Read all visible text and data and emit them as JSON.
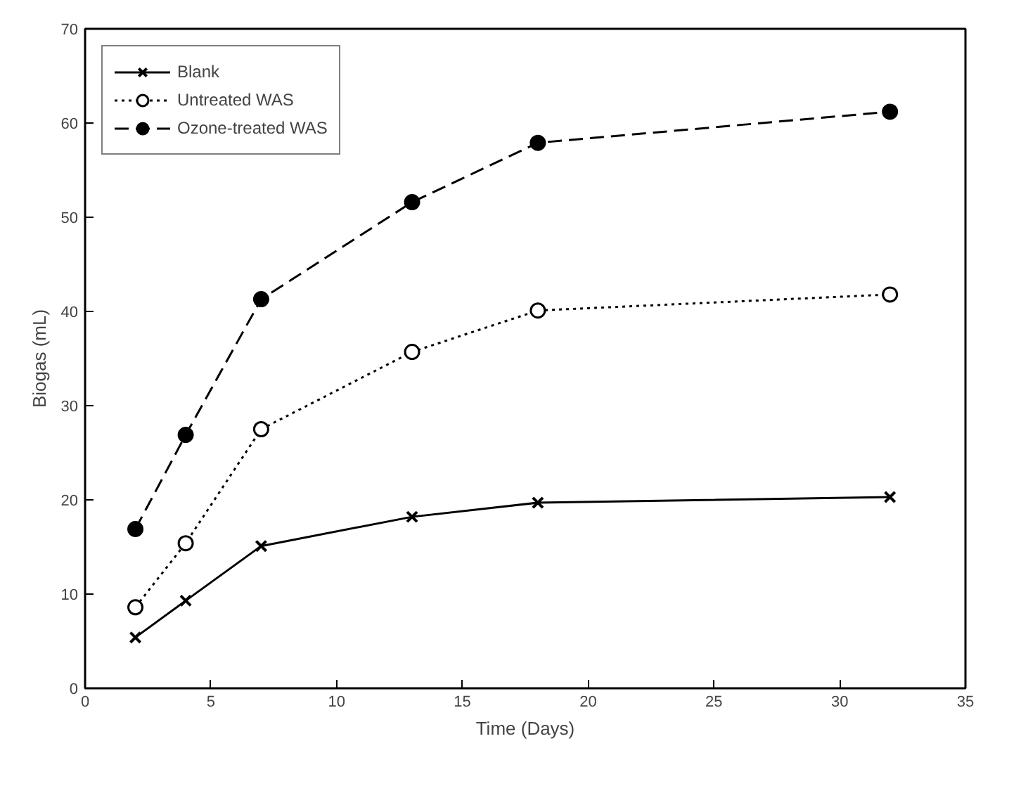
{
  "chart_data": {
    "type": "line",
    "xlabel": "Time (Days)",
    "ylabel": "Biogas (mL)",
    "x": [
      2,
      4,
      7,
      13,
      18,
      32
    ],
    "series": [
      {
        "name": "Blank",
        "color": "#000000",
        "marker": "cross",
        "line_style": "solid",
        "values": [
          5.4,
          9.3,
          15.1,
          18.2,
          19.7,
          20.3
        ]
      },
      {
        "name": "Untreated WAS",
        "color": "#000000",
        "marker": "circle",
        "line_style": "dotted",
        "values": [
          8.6,
          15.4,
          27.5,
          35.7,
          40.1,
          41.8
        ]
      },
      {
        "name": "Ozone-treated WAS",
        "color": "#000000",
        "marker": "circle",
        "line_style": "dashed",
        "values": [
          16.9,
          26.9,
          41.3,
          51.6,
          57.9,
          61.2
        ]
      }
    ],
    "xlim": [
      0,
      35
    ],
    "ylim": [
      0,
      70
    ],
    "xticks": [
      0,
      5,
      10,
      15,
      20,
      25,
      30,
      35
    ],
    "yticks": [
      0,
      10,
      20,
      30,
      40,
      50,
      60,
      70
    ],
    "grid": false,
    "legend": "top left"
  }
}
